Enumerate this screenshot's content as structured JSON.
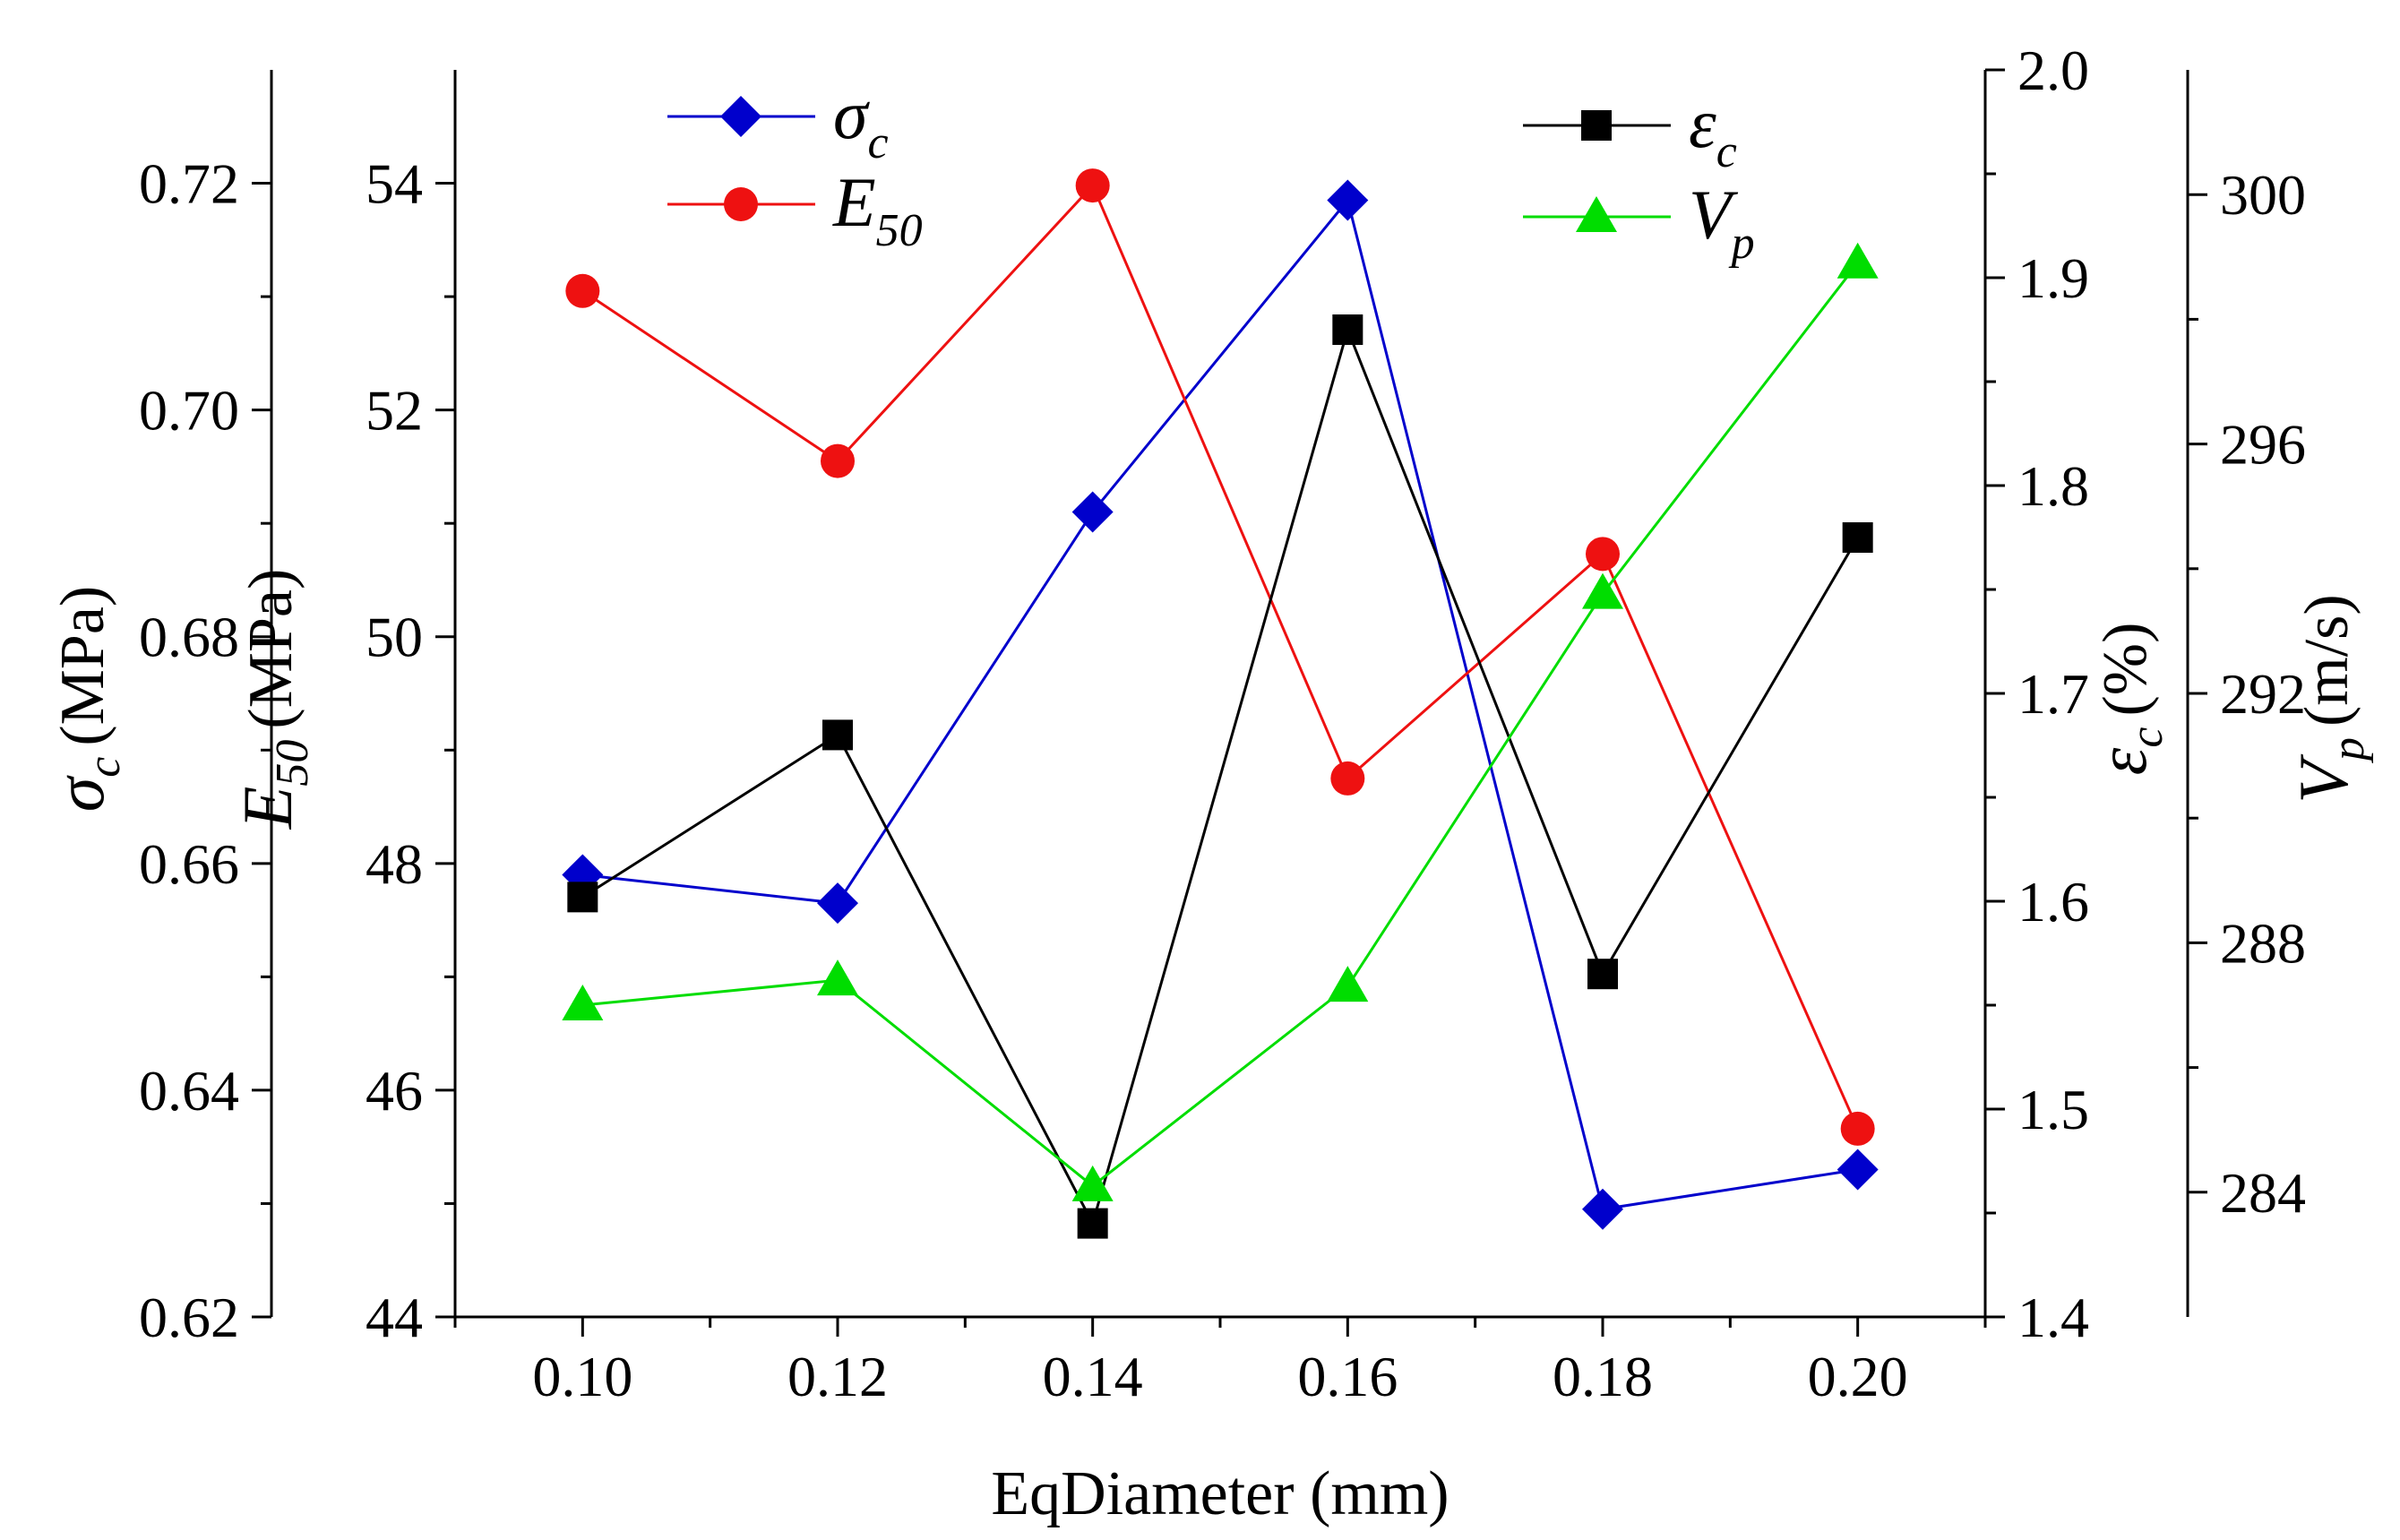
{
  "chart_data": {
    "type": "line",
    "xlabel": "EqDiameter (mm)",
    "x": [
      0.1,
      0.12,
      0.14,
      0.16,
      0.18,
      0.2
    ],
    "x_ticks": [
      "0.10",
      "0.12",
      "0.14",
      "0.16",
      "0.18",
      "0.20"
    ],
    "xlim": [
      0.09,
      0.21
    ],
    "axes": [
      {
        "id": "sigma",
        "label_symbol": "σ",
        "label_sub": "c",
        "label_unit": "(MPa)",
        "ylim": [
          0.62,
          0.73
        ],
        "ticks": [
          "0.62",
          "0.64",
          "0.66",
          "0.68",
          "0.70",
          "0.72"
        ],
        "tick_values": [
          0.62,
          0.64,
          0.66,
          0.68,
          0.7,
          0.72
        ]
      },
      {
        "id": "E50",
        "label_symbol": "E",
        "label_sub": "50",
        "label_unit": "(MPa)",
        "ylim": [
          44,
          55
        ],
        "ticks": [
          "44",
          "46",
          "48",
          "50",
          "52",
          "54"
        ],
        "tick_values": [
          44,
          46,
          48,
          50,
          52,
          54
        ]
      },
      {
        "id": "eps",
        "label_symbol": "ε",
        "label_sub": "c",
        "label_unit": "(%)",
        "ylim": [
          1.4,
          2.0
        ],
        "ticks": [
          "1.4",
          "1.5",
          "1.6",
          "1.7",
          "1.8",
          "1.9",
          "2.0"
        ],
        "tick_values": [
          1.4,
          1.5,
          1.6,
          1.7,
          1.8,
          1.9,
          2.0
        ]
      },
      {
        "id": "Vp",
        "label_symbol": "V",
        "label_sub": "p",
        "label_unit": "(m/s)",
        "ylim": [
          282,
          302
        ],
        "ticks": [
          "284",
          "288",
          "292",
          "296",
          "300"
        ],
        "tick_values": [
          284,
          288,
          292,
          296,
          300
        ]
      }
    ],
    "series": [
      {
        "name_symbol": "σ",
        "name_sub": "c",
        "axis": "sigma",
        "color": "#0000cc",
        "marker": "diamond",
        "values": [
          0.659,
          0.6565,
          0.691,
          0.7185,
          0.6295,
          0.633
        ]
      },
      {
        "name_symbol": "E",
        "name_sub": "50",
        "axis": "E50",
        "color": "#ee1111",
        "marker": "circle",
        "values": [
          53.05,
          51.55,
          53.98,
          48.75,
          50.73,
          45.66
        ]
      },
      {
        "name_symbol": "ε",
        "name_sub": "c",
        "axis": "eps",
        "color": "#000000",
        "marker": "square",
        "values": [
          1.602,
          1.68,
          1.445,
          1.875,
          1.565,
          1.775
        ]
      },
      {
        "name_symbol": "V",
        "name_sub": "p",
        "axis": "Vp",
        "color": "#00dd00",
        "marker": "triangle",
        "values": [
          287.0,
          287.4,
          284.1,
          287.3,
          293.6,
          298.9
        ]
      }
    ],
    "legend": "two groups at top-left and top-right inside plot",
    "grid": false
  }
}
